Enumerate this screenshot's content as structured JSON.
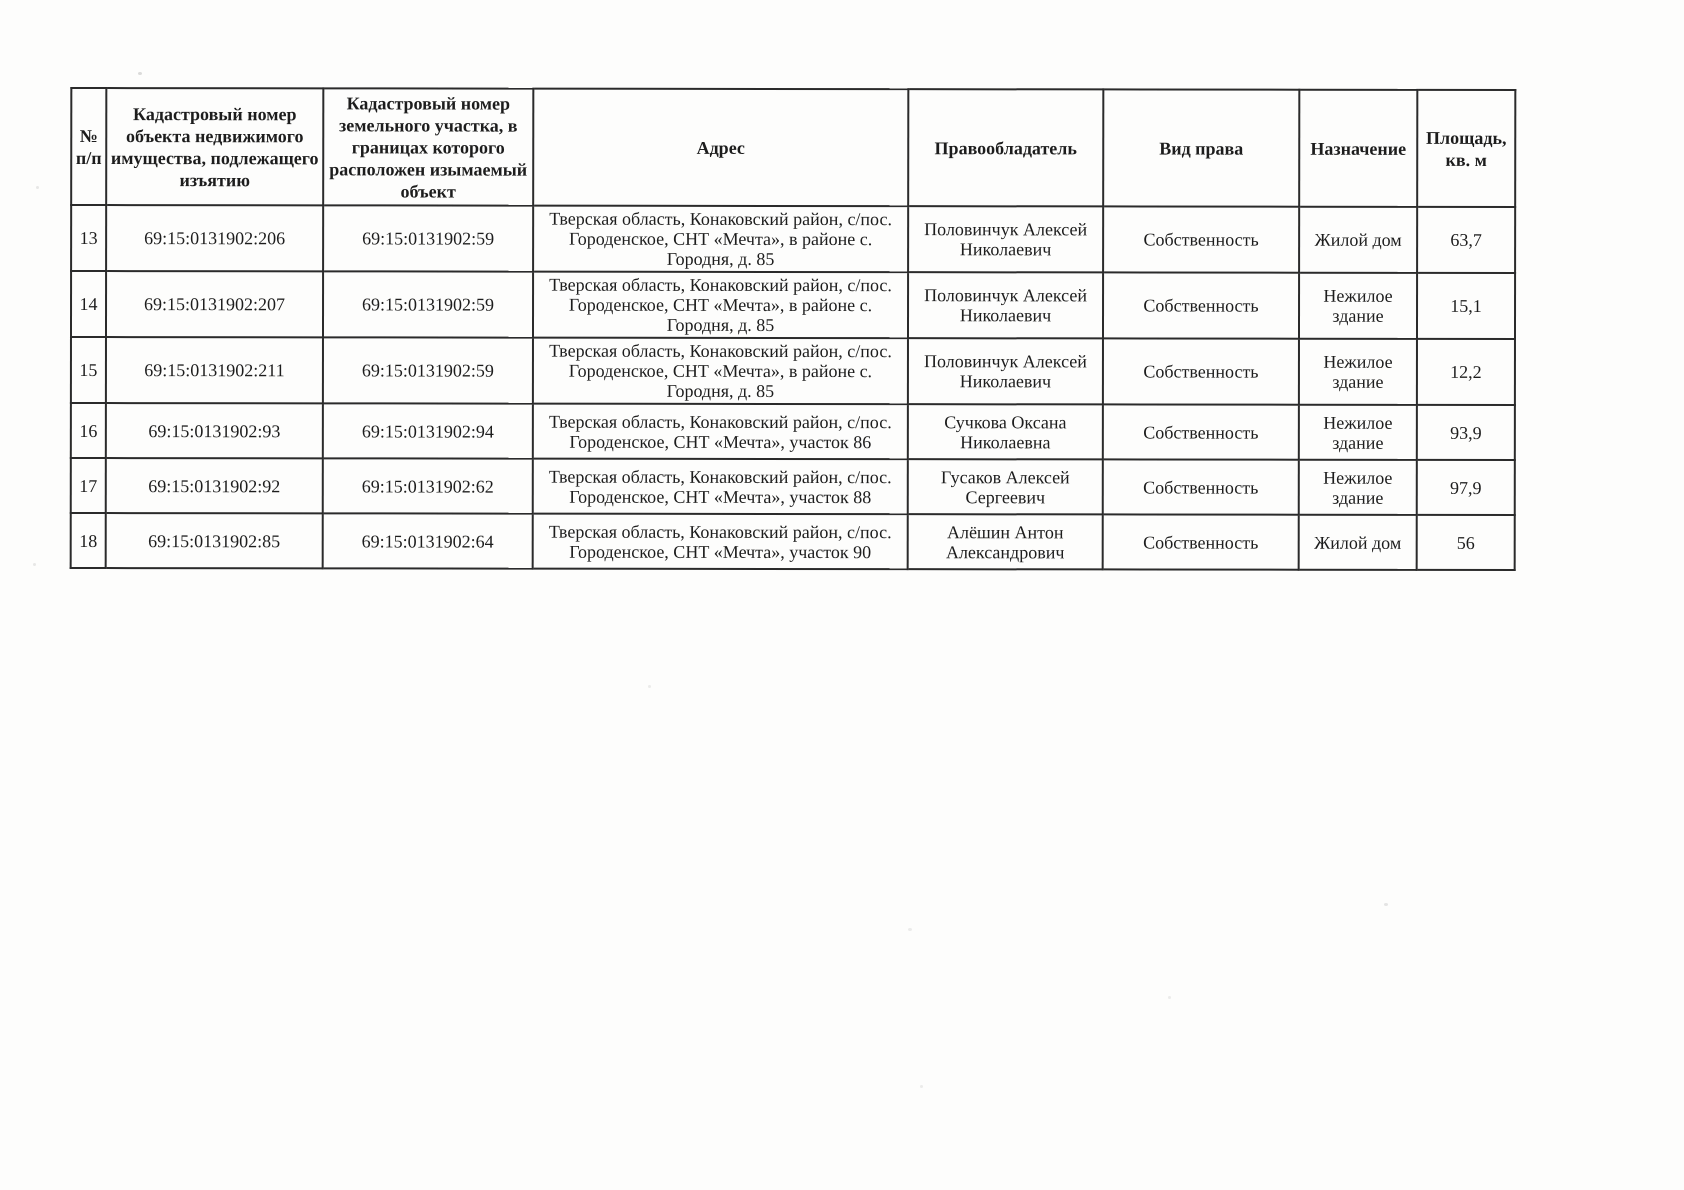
{
  "colors": {
    "paper": "#fdfdfc",
    "border": "#2b2b2b",
    "text": "#1d1d1d"
  },
  "table": {
    "columns": [
      {
        "key": "num",
        "label": "№ п/п"
      },
      {
        "key": "cad_object",
        "label": "Кадастровый номер объекта недвижимого имущества, подлежащего изъятию"
      },
      {
        "key": "cad_parcel",
        "label": "Кадастровый номер земельного участка, в границах которого расположен изымаемый объект"
      },
      {
        "key": "address",
        "label": "Адрес"
      },
      {
        "key": "owner",
        "label": "Правообладатель"
      },
      {
        "key": "right_type",
        "label": "Вид права"
      },
      {
        "key": "purpose",
        "label": "Назначение"
      },
      {
        "key": "area",
        "label": "Площадь, кв. м"
      }
    ],
    "rows": [
      {
        "num": "13",
        "cad_object": "69:15:0131902:206",
        "cad_parcel": "69:15:0131902:59",
        "address": "Тверская область, Конаковский район, с/пос. Городенское, СНТ «Мечта», в районе с. Городня, д. 85",
        "owner": "Половинчук Алексей Николаевич",
        "right_type": "Собственность",
        "purpose": "Жилой дом",
        "area": "63,7"
      },
      {
        "num": "14",
        "cad_object": "69:15:0131902:207",
        "cad_parcel": "69:15:0131902:59",
        "address": "Тверская область, Конаковский район, с/пос. Городенское, СНТ «Мечта», в районе с. Городня, д. 85",
        "owner": "Половинчук Алексей Николаевич",
        "right_type": "Собственность",
        "purpose": "Нежилое здание",
        "area": "15,1"
      },
      {
        "num": "15",
        "cad_object": "69:15:0131902:211",
        "cad_parcel": "69:15:0131902:59",
        "address": "Тверская область, Конаковский район, с/пос. Городенское, СНТ «Мечта», в районе с. Городня, д. 85",
        "owner": "Половинчук Алексей Николаевич",
        "right_type": "Собственность",
        "purpose": "Нежилое здание",
        "area": "12,2"
      },
      {
        "num": "16",
        "cad_object": "69:15:0131902:93",
        "cad_parcel": "69:15:0131902:94",
        "address": "Тверская область, Конаковский район, с/пос. Городенское, СНТ «Мечта», участок 86",
        "owner": "Сучкова Оксана Николаевна",
        "right_type": "Собственность",
        "purpose": "Нежилое здание",
        "area": "93,9"
      },
      {
        "num": "17",
        "cad_object": "69:15:0131902:92",
        "cad_parcel": "69:15:0131902:62",
        "address": "Тверская область, Конаковский район, с/пос. Городенское, СНТ «Мечта», участок 88",
        "owner": "Гусаков Алексей Сергеевич",
        "right_type": "Собственность",
        "purpose": "Нежилое здание",
        "area": "97,9"
      },
      {
        "num": "18",
        "cad_object": "69:15:0131902:85",
        "cad_parcel": "69:15:0131902:64",
        "address": "Тверская область, Конаковский район, с/пос. Городенское, СНТ «Мечта», участок 90",
        "owner": "Алёшин Антон Александрович",
        "right_type": "Собственность",
        "purpose": "Жилой дом",
        "area": "56"
      }
    ]
  }
}
